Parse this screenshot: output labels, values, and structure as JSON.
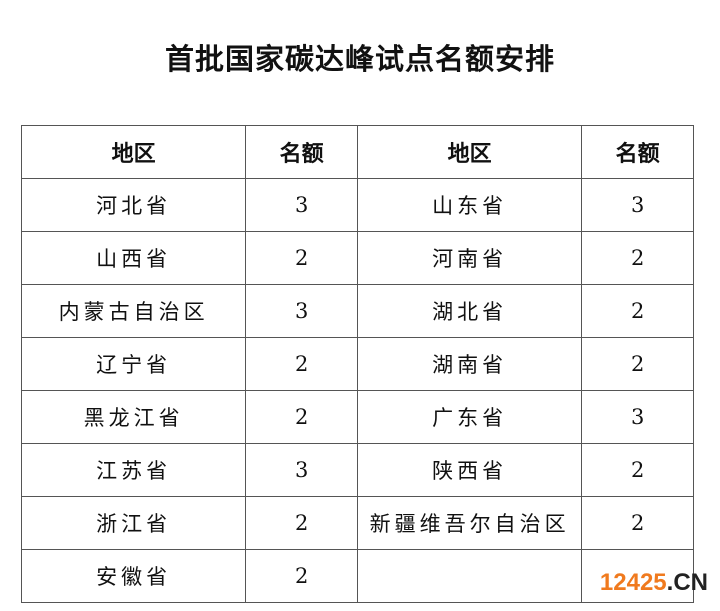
{
  "title": "首批国家碳达峰试点名额安排",
  "headers": [
    "地区",
    "名额",
    "地区",
    "名额"
  ],
  "rows": [
    [
      "河北省",
      "3",
      "山东省",
      "3"
    ],
    [
      "山西省",
      "2",
      "河南省",
      "2"
    ],
    [
      "内蒙古自治区",
      "3",
      "湖北省",
      "2"
    ],
    [
      "辽宁省",
      "2",
      "湖南省",
      "2"
    ],
    [
      "黑龙江省",
      "2",
      "广东省",
      "3"
    ],
    [
      "江苏省",
      "3",
      "陕西省",
      "2"
    ],
    [
      "浙江省",
      "2",
      "新疆维吾尔自治区",
      "2"
    ],
    [
      "安徽省",
      "2",
      "",
      ""
    ]
  ],
  "watermark": {
    "number": "12425",
    "suffix": ".CN",
    "color": "#f07a1e"
  }
}
